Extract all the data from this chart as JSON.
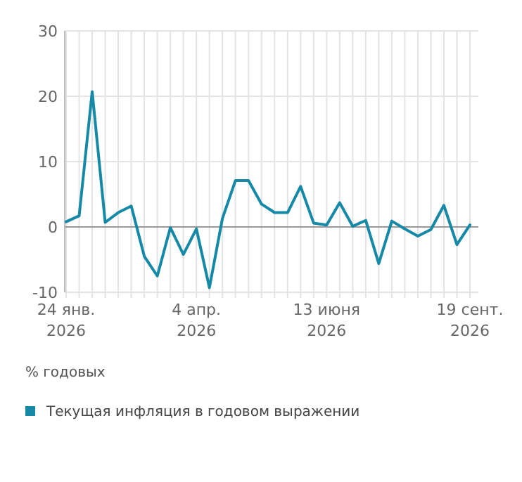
{
  "chart_data": {
    "type": "line",
    "ylabel": "% годовых",
    "categories": [
      "24 янв. 2026",
      null,
      null,
      null,
      null,
      null,
      null,
      null,
      null,
      null,
      "4 апр. 2026",
      null,
      null,
      null,
      null,
      null,
      null,
      null,
      null,
      null,
      "13 июня 2026",
      null,
      null,
      null,
      null,
      null,
      null,
      null,
      null,
      null,
      null,
      "19 сент. 2026"
    ],
    "series": [
      {
        "name": "Текущая инфляция в годовом выражении",
        "color": "#1689a6",
        "values": [
          0.8,
          1.7,
          20.7,
          0.7,
          2.2,
          3.2,
          -4.5,
          -7.5,
          -0.1,
          -4.2,
          -0.3,
          -9.3,
          1.3,
          7.1,
          7.1,
          3.5,
          2.2,
          2.2,
          6.2,
          0.6,
          0.3,
          3.7,
          0.1,
          1.0,
          -5.6,
          0.9,
          -0.3,
          -1.4,
          -0.4,
          3.3,
          -2.7,
          0.3
        ]
      }
    ],
    "ylim": [
      -10,
      30
    ],
    "yticks": [
      -10,
      0,
      10,
      20,
      30
    ],
    "grid": true,
    "legend": "bottom",
    "marker": "none",
    "line_style": "solid"
  }
}
